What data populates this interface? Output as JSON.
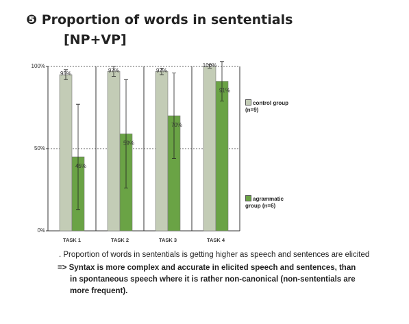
{
  "title": "❺ Proportion of words in sententials",
  "subtitle": "[NP+VP]",
  "chart_data": {
    "type": "bar",
    "categories": [
      "TASK 1",
      "TASK 2",
      "TASK 3",
      "TASK 4"
    ],
    "series": [
      {
        "name": "control group (n=9)",
        "color": "#c3ccb6",
        "values": [
          95,
          97,
          97,
          100
        ],
        "value_labels": [
          "95%",
          "97%",
          "97%",
          "100%"
        ],
        "errors": [
          3,
          3,
          2,
          1
        ]
      },
      {
        "name": "agrammatic group (n=6)",
        "color": "#6aa345",
        "values": [
          45,
          59,
          70,
          91
        ],
        "value_labels": [
          "45%",
          "59%",
          "70%",
          "91%"
        ],
        "errors": [
          32,
          33,
          26,
          12
        ]
      }
    ],
    "ylim": [
      0,
      100
    ],
    "yticks": [
      {
        "value": 0,
        "label": "0%"
      },
      {
        "value": 50,
        "label": "50%"
      },
      {
        "value": 100,
        "label": "100%"
      }
    ],
    "grid": true
  },
  "notes": [
    ". Proportion of words in sententials is getting higher as speech and sentences are elicited",
    "=> Syntax is more complex and accurate in elicited speech and sentences, than in spontaneous speech where it is rather non-canonical (non-sententials are more frequent)."
  ]
}
